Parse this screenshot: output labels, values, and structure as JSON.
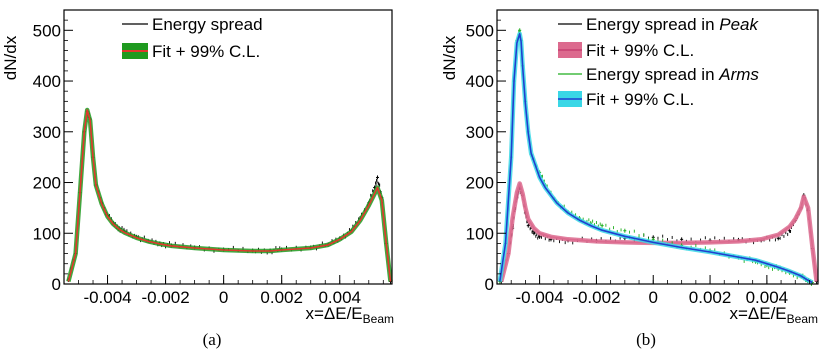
{
  "chart_data": [
    {
      "type": "line",
      "panel_label": "(a)",
      "xlabel": "x=ΔE/E",
      "xlabel_sub": "Beam",
      "ylabel": "dN/dx",
      "xlim": [
        -0.0055,
        0.0058
      ],
      "ylim": [
        0,
        540
      ],
      "x_ticks": [
        -0.004,
        -0.002,
        0,
        0.002,
        0.004
      ],
      "x_tick_labels": [
        "-0.004",
        "-0.002",
        "0",
        "0.002",
        "0.004"
      ],
      "y_ticks": [
        0,
        100,
        200,
        300,
        400,
        500
      ],
      "y_tick_labels": [
        "0",
        "100",
        "200",
        "300",
        "400",
        "500"
      ],
      "legend_position": "top-center",
      "series": [
        {
          "name": "Energy spread",
          "style": "points",
          "color": "#000000",
          "points": [
            [
              -0.00535,
              8
            ],
            [
              -0.0051,
              60
            ],
            [
              -0.00495,
              180
            ],
            [
              -0.0048,
              300
            ],
            [
              -0.0047,
              340
            ],
            [
              -0.0046,
              325
            ],
            [
              -0.0045,
              250
            ],
            [
              -0.0044,
              195
            ],
            [
              -0.0042,
              160
            ],
            [
              -0.004,
              135
            ],
            [
              -0.0038,
              120
            ],
            [
              -0.0036,
              110
            ],
            [
              -0.0034,
              103
            ],
            [
              -0.003,
              93
            ],
            [
              -0.0026,
              85
            ],
            [
              -0.0022,
              80
            ],
            [
              -0.0018,
              76
            ],
            [
              -0.001,
              72
            ],
            [
              0,
              68
            ],
            [
              0.001,
              66
            ],
            [
              0.0016,
              66
            ],
            [
              0.002,
              68
            ],
            [
              0.003,
              72
            ],
            [
              0.0036,
              78
            ],
            [
              0.004,
              90
            ],
            [
              0.0044,
              105
            ],
            [
              0.0047,
              130
            ],
            [
              0.005,
              160
            ],
            [
              0.0052,
              190
            ],
            [
              0.0053,
              210
            ],
            [
              0.00545,
              170
            ],
            [
              0.0056,
              80
            ],
            [
              0.00575,
              5
            ]
          ]
        },
        {
          "name": "Fit + 99% C.L.",
          "style": "band",
          "color": "#e0382d",
          "band_color": "#1f9a1f",
          "points": [
            [
              -0.00535,
              5
            ],
            [
              -0.0051,
              60
            ],
            [
              -0.00495,
              180
            ],
            [
              -0.0048,
              300
            ],
            [
              -0.0047,
              343
            ],
            [
              -0.0046,
              322
            ],
            [
              -0.0045,
              250
            ],
            [
              -0.0044,
              195
            ],
            [
              -0.0042,
              158
            ],
            [
              -0.004,
              133
            ],
            [
              -0.0038,
              118
            ],
            [
              -0.0036,
              108
            ],
            [
              -0.0034,
              101
            ],
            [
              -0.003,
              91
            ],
            [
              -0.0026,
              84
            ],
            [
              -0.0022,
              79
            ],
            [
              -0.0018,
              75
            ],
            [
              -0.001,
              71
            ],
            [
              0,
              67
            ],
            [
              0.001,
              65
            ],
            [
              0.0016,
              65
            ],
            [
              0.002,
              67
            ],
            [
              0.003,
              71
            ],
            [
              0.0036,
              77
            ],
            [
              0.004,
              88
            ],
            [
              0.0044,
              103
            ],
            [
              0.0047,
              125
            ],
            [
              0.005,
              155
            ],
            [
              0.0052,
              178
            ],
            [
              0.0053,
              190
            ],
            [
              0.00545,
              165
            ],
            [
              0.0056,
              80
            ],
            [
              0.00575,
              5
            ]
          ]
        }
      ]
    },
    {
      "type": "line",
      "panel_label": "(b)",
      "xlabel": "x=ΔE/E",
      "xlabel_sub": "Beam",
      "ylabel": "dN/dx",
      "xlim": [
        -0.0055,
        0.0058
      ],
      "ylim": [
        0,
        540
      ],
      "x_ticks": [
        -0.004,
        -0.002,
        0,
        0.002,
        0.004
      ],
      "x_tick_labels": [
        "-0.004",
        "-0.002",
        "0",
        "0.002",
        "0.004"
      ],
      "y_ticks": [
        0,
        100,
        200,
        300,
        400,
        500
      ],
      "y_tick_labels": [
        "0",
        "100",
        "200",
        "300",
        "400",
        "500"
      ],
      "legend_position": "top-right",
      "series": [
        {
          "name": "Energy spread in Peak",
          "name_prefix": "Energy spread in ",
          "name_italic": "Peak",
          "style": "points",
          "color": "#000000",
          "points": [
            [
              -0.00535,
              5
            ],
            [
              -0.0051,
              60
            ],
            [
              -0.00495,
              110
            ],
            [
              -0.0048,
              170
            ],
            [
              -0.0047,
              190
            ],
            [
              -0.0046,
              175
            ],
            [
              -0.0045,
              140
            ],
            [
              -0.0044,
              115
            ],
            [
              -0.0042,
              100
            ],
            [
              -0.004,
              93
            ],
            [
              -0.0036,
              88
            ],
            [
              -0.003,
              86
            ],
            [
              -0.002,
              85
            ],
            [
              -0.001,
              90
            ],
            [
              0,
              92
            ],
            [
              0.001,
              88
            ],
            [
              0.002,
              86
            ],
            [
              0.003,
              87
            ],
            [
              0.0038,
              86
            ],
            [
              0.0044,
              90
            ],
            [
              0.0048,
              105
            ],
            [
              0.005,
              125
            ],
            [
              0.0052,
              150
            ],
            [
              0.0053,
              175
            ],
            [
              0.00545,
              145
            ],
            [
              0.0056,
              70
            ],
            [
              0.00575,
              5
            ]
          ]
        },
        {
          "name": "Fit + 99% C.L.",
          "style": "band",
          "color": "#dc6a8e",
          "band_color": "#dc6a8e",
          "points": [
            [
              -0.00535,
              5
            ],
            [
              -0.0051,
              60
            ],
            [
              -0.00495,
              130
            ],
            [
              -0.0048,
              180
            ],
            [
              -0.0047,
              198
            ],
            [
              -0.0046,
              178
            ],
            [
              -0.0045,
              150
            ],
            [
              -0.0044,
              128
            ],
            [
              -0.0042,
              110
            ],
            [
              -0.004,
              100
            ],
            [
              -0.0036,
              93
            ],
            [
              -0.003,
              88
            ],
            [
              -0.002,
              84
            ],
            [
              -0.001,
              82
            ],
            [
              0,
              81
            ],
            [
              0.001,
              81
            ],
            [
              0.002,
              82
            ],
            [
              0.003,
              84
            ],
            [
              0.0038,
              88
            ],
            [
              0.0044,
              97
            ],
            [
              0.0048,
              113
            ],
            [
              0.005,
              128
            ],
            [
              0.0052,
              150
            ],
            [
              0.0053,
              172
            ],
            [
              0.00545,
              150
            ],
            [
              0.0056,
              75
            ],
            [
              0.00575,
              5
            ]
          ]
        },
        {
          "name": "Energy spread in Arms",
          "name_prefix": "Energy spread in ",
          "name_italic": "Arms",
          "style": "points",
          "color": "#1fae1f",
          "points": [
            [
              -0.0054,
              5
            ],
            [
              -0.0052,
              80
            ],
            [
              -0.005,
              250
            ],
            [
              -0.0049,
              400
            ],
            [
              -0.0048,
              480
            ],
            [
              -0.0047,
              500
            ],
            [
              -0.00465,
              480
            ],
            [
              -0.0046,
              430
            ],
            [
              -0.0045,
              360
            ],
            [
              -0.0044,
              300
            ],
            [
              -0.0043,
              255
            ],
            [
              -0.004,
              220
            ],
            [
              -0.0038,
              195
            ],
            [
              -0.0034,
              162
            ],
            [
              -0.003,
              142
            ],
            [
              -0.0026,
              130
            ],
            [
              -0.0022,
              120
            ],
            [
              -0.0018,
              115
            ],
            [
              -0.001,
              105
            ],
            [
              0,
              88
            ],
            [
              0.001,
              76
            ],
            [
              0.002,
              66
            ],
            [
              0.003,
              52
            ],
            [
              0.0036,
              44
            ],
            [
              0.004,
              37
            ],
            [
              0.0044,
              30
            ],
            [
              0.0048,
              22
            ],
            [
              0.0052,
              15
            ],
            [
              0.0054,
              8
            ],
            [
              0.0056,
              3
            ]
          ]
        },
        {
          "name": "Fit + 99% C.L.",
          "style": "band",
          "color": "#1f3fd0",
          "band_color": "#3ad7e6",
          "points": [
            [
              -0.0054,
              5
            ],
            [
              -0.0052,
              80
            ],
            [
              -0.005,
              250
            ],
            [
              -0.0049,
              400
            ],
            [
              -0.0048,
              475
            ],
            [
              -0.0047,
              493
            ],
            [
              -0.00465,
              478
            ],
            [
              -0.0046,
              430
            ],
            [
              -0.0045,
              355
            ],
            [
              -0.0044,
              298
            ],
            [
              -0.0043,
              258
            ],
            [
              -0.004,
              210
            ],
            [
              -0.0038,
              190
            ],
            [
              -0.0034,
              160
            ],
            [
              -0.003,
              140
            ],
            [
              -0.0026,
              126
            ],
            [
              -0.0022,
              115
            ],
            [
              -0.0018,
              106
            ],
            [
              -0.001,
              94
            ],
            [
              0,
              82
            ],
            [
              0.001,
              72
            ],
            [
              0.002,
              63
            ],
            [
              0.003,
              53
            ],
            [
              0.0036,
              47
            ],
            [
              0.004,
              40
            ],
            [
              0.0044,
              33
            ],
            [
              0.0048,
              25
            ],
            [
              0.0052,
              16
            ],
            [
              0.0054,
              9
            ],
            [
              0.0056,
              3
            ]
          ]
        }
      ]
    }
  ]
}
